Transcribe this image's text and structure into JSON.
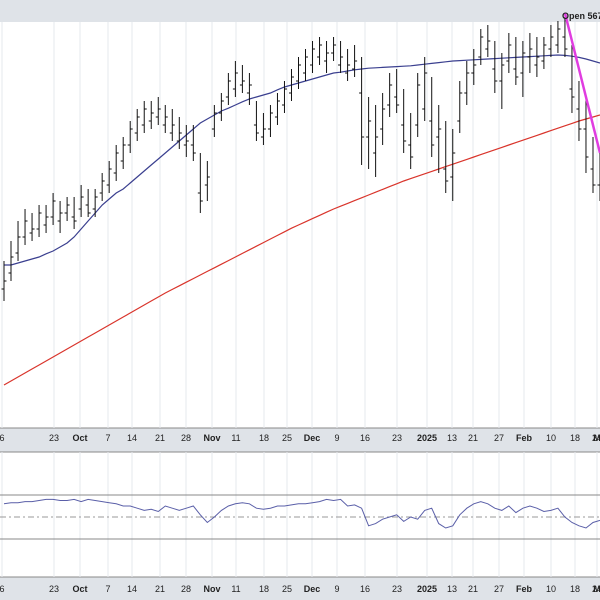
{
  "chart_data": [
    {
      "type": "ohlc",
      "header_text": "Open 567",
      "x_tick_labels": [
        "6",
        "23",
        "Oct",
        "7",
        "14",
        "21",
        "28",
        "Nov",
        "11",
        "18",
        "25",
        "Dec",
        "9",
        "16",
        "23",
        "2025",
        "13",
        "21",
        "27",
        "Feb",
        "10",
        "18",
        "24",
        "M"
      ],
      "bold_ticks": [
        "Oct",
        "Nov",
        "Dec",
        "2025",
        "Feb",
        "M"
      ],
      "ylim": [
        0,
        100
      ],
      "price_bars": [
        [
          34,
          41,
          31,
          36
        ],
        [
          38,
          46,
          36,
          42
        ],
        [
          43,
          51,
          41,
          47
        ],
        [
          47,
          54,
          45,
          51
        ],
        [
          48,
          53,
          46,
          49
        ],
        [
          49,
          55,
          47,
          53
        ],
        [
          50,
          55,
          48,
          52
        ],
        [
          52,
          58,
          50,
          56
        ],
        [
          51,
          56,
          48,
          53
        ],
        [
          53,
          57,
          51,
          55
        ],
        [
          52,
          57,
          49,
          51
        ],
        [
          54,
          60,
          52,
          57
        ],
        [
          55,
          59,
          52,
          53
        ],
        [
          54,
          59,
          52,
          57
        ],
        [
          58,
          63,
          56,
          61
        ],
        [
          60,
          66,
          58,
          64
        ],
        [
          63,
          70,
          61,
          68
        ],
        [
          66,
          72,
          64,
          70
        ],
        [
          70,
          76,
          68,
          74
        ],
        [
          73,
          79,
          71,
          77
        ],
        [
          75,
          81,
          73,
          79
        ],
        [
          76,
          81,
          74,
          78
        ],
        [
          77,
          82,
          75,
          79
        ],
        [
          75,
          80,
          73,
          77
        ],
        [
          73,
          79,
          71,
          75
        ],
        [
          71,
          77,
          69,
          73
        ],
        [
          70,
          75,
          67,
          71
        ],
        [
          70,
          75,
          66,
          68
        ],
        [
          58,
          68,
          53,
          56
        ],
        [
          60,
          66,
          56,
          62
        ],
        [
          74,
          80,
          72,
          78
        ],
        [
          78,
          83,
          76,
          81
        ],
        [
          82,
          88,
          80,
          86
        ],
        [
          84,
          91,
          82,
          88
        ],
        [
          85,
          90,
          83,
          86
        ],
        [
          83,
          88,
          80,
          85
        ],
        [
          75,
          81,
          71,
          73
        ],
        [
          72,
          78,
          70,
          74
        ],
        [
          74,
          80,
          72,
          78
        ],
        [
          77,
          83,
          75,
          81
        ],
        [
          80,
          86,
          78,
          84
        ],
        [
          83,
          89,
          81,
          87
        ],
        [
          86,
          92,
          84,
          90
        ],
        [
          88,
          94,
          86,
          92
        ],
        [
          90,
          96,
          88,
          94
        ],
        [
          92,
          97,
          90,
          95
        ],
        [
          91,
          96,
          88,
          93
        ],
        [
          93,
          97,
          91,
          95
        ],
        [
          90,
          96,
          88,
          92
        ],
        [
          88,
          94,
          86,
          90
        ],
        [
          89,
          95,
          87,
          91
        ],
        [
          83,
          92,
          65,
          72
        ],
        [
          72,
          82,
          64,
          76
        ],
        [
          68,
          80,
          62,
          72
        ],
        [
          74,
          83,
          70,
          79
        ],
        [
          80,
          88,
          77,
          85
        ],
        [
          82,
          89,
          78,
          80
        ],
        [
          75,
          84,
          68,
          71
        ],
        [
          70,
          78,
          64,
          67
        ],
        [
          75,
          88,
          72,
          85
        ],
        [
          79,
          92,
          76,
          88
        ],
        [
          76,
          87,
          67,
          70
        ],
        [
          72,
          80,
          63,
          74
        ],
        [
          64,
          76,
          58,
          61
        ],
        [
          62,
          74,
          56,
          68
        ],
        [
          76,
          86,
          73,
          83
        ],
        [
          83,
          91,
          80,
          88
        ],
        [
          88,
          94,
          85,
          90
        ],
        [
          92,
          99,
          90,
          97
        ],
        [
          94,
          100,
          92,
          96
        ],
        [
          89,
          96,
          83,
          86
        ],
        [
          86,
          93,
          79,
          90
        ],
        [
          91,
          98,
          88,
          95
        ],
        [
          89,
          97,
          85,
          87
        ],
        [
          88,
          96,
          82,
          93
        ],
        [
          92,
          98,
          88,
          94
        ],
        [
          90,
          97,
          87,
          92
        ],
        [
          91,
          97,
          89,
          95
        ],
        [
          94,
          100,
          92,
          97
        ],
        [
          95,
          101,
          93,
          99
        ],
        [
          97,
          102,
          92,
          94
        ],
        [
          84,
          95,
          78,
          82
        ],
        [
          79,
          86,
          71,
          74
        ],
        [
          74,
          82,
          63,
          67
        ],
        [
          64,
          72,
          58,
          60
        ],
        [
          60,
          68,
          56,
          64
        ]
      ],
      "series": [
        {
          "color": "#3a3f8f",
          "values": [
            40,
            40,
            40.5,
            41,
            41.5,
            42,
            42.8,
            43.5,
            44.5,
            45.5,
            47,
            49,
            51,
            53,
            55,
            56.5,
            58,
            59,
            60.5,
            62,
            63.5,
            65,
            66.5,
            68,
            69.5,
            71,
            72.5,
            74,
            75.5,
            76.5,
            77.5,
            78.5,
            79.2,
            80,
            80.8,
            81.5,
            82,
            82.5,
            83,
            83.8,
            84.5,
            85,
            85.5,
            86,
            86.5,
            87,
            87.5,
            88,
            88.2,
            88.5,
            88.8,
            89,
            89.2,
            89.3,
            89.4,
            89.5,
            89.6,
            89.7,
            89.8,
            90,
            90.2,
            90.4,
            90.6,
            90.8,
            91,
            91.1,
            91.2,
            91.3,
            91.4,
            91.5,
            91.6,
            91.7,
            91.8,
            91.9,
            92,
            92.1,
            92.2,
            92.3,
            92.4,
            92.5,
            92.4,
            92.2,
            91.9,
            91.5,
            91,
            90.5
          ]
        },
        {
          "color": "#d9342b",
          "values": [
            10,
            11,
            12,
            13,
            14,
            15,
            16,
            17,
            18,
            19,
            20,
            21,
            22,
            23,
            24,
            25,
            26,
            27,
            28,
            29,
            30,
            31,
            32,
            33,
            33.9,
            34.8,
            35.7,
            36.6,
            37.5,
            38.4,
            39.3,
            40.2,
            41.1,
            42,
            42.9,
            43.8,
            44.7,
            45.6,
            46.5,
            47.4,
            48.3,
            49.2,
            50,
            50.8,
            51.6,
            52.4,
            53.2,
            54,
            54.7,
            55.4,
            56.1,
            56.8,
            57.5,
            58.2,
            58.9,
            59.6,
            60.3,
            61,
            61.6,
            62.2,
            62.8,
            63.4,
            64,
            64.6,
            65.2,
            65.8,
            66.4,
            67,
            67.6,
            68.2,
            68.8,
            69.4,
            70,
            70.6,
            71.2,
            71.8,
            72.4,
            73,
            73.6,
            74.2,
            74.8,
            75.4,
            76,
            76.5,
            77,
            77.5
          ]
        }
      ],
      "trendline": {
        "color": "#e03ce0",
        "from": {
          "i": 80,
          "v": 103
        },
        "to": {
          "i": 85,
          "v": 68
        }
      },
      "indicator": {
        "ylim": [
          0,
          100
        ],
        "levels": [
          70,
          50,
          30
        ],
        "color": "#5a5fa8",
        "values": [
          62,
          63,
          63,
          64,
          64,
          65,
          66,
          66,
          65,
          65,
          66,
          64,
          66,
          65,
          64,
          63,
          62,
          60,
          60,
          58,
          56,
          57,
          55,
          60,
          58,
          56,
          58,
          60,
          52,
          45,
          50,
          56,
          60,
          62,
          63,
          62,
          58,
          57,
          58,
          60,
          60,
          61,
          62,
          62,
          63,
          64,
          66,
          65,
          66,
          60,
          61,
          58,
          42,
          44,
          48,
          50,
          52,
          46,
          50,
          48,
          56,
          58,
          44,
          40,
          42,
          52,
          58,
          62,
          64,
          62,
          58,
          56,
          60,
          54,
          58,
          60,
          58,
          55,
          56,
          58,
          50,
          45,
          42,
          40,
          45,
          47
        ]
      }
    }
  ]
}
